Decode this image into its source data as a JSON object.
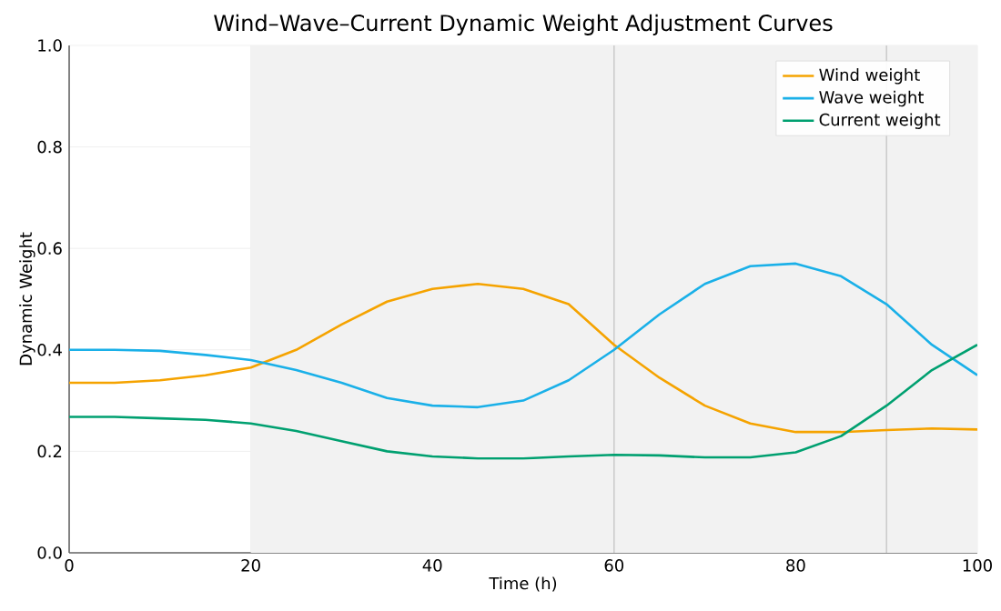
{
  "chart_data": {
    "type": "line",
    "title": "Wind–Wave–Current Dynamic Weight Adjustment Curves",
    "xlabel": "Time (h)",
    "ylabel": "Dynamic Weight",
    "x": [
      0,
      5,
      10,
      15,
      20,
      25,
      30,
      35,
      40,
      45,
      50,
      55,
      60,
      65,
      70,
      75,
      80,
      85,
      90,
      95,
      100
    ],
    "series": [
      {
        "name": "Wind weight",
        "color": "#f5a300",
        "values": [
          0.335,
          0.335,
          0.34,
          0.35,
          0.365,
          0.4,
          0.45,
          0.495,
          0.52,
          0.53,
          0.52,
          0.49,
          0.41,
          0.345,
          0.29,
          0.255,
          0.238,
          0.238,
          0.242,
          0.245,
          0.243
        ]
      },
      {
        "name": "Wave weight",
        "color": "#1ab0e8",
        "values": [
          0.4,
          0.4,
          0.398,
          0.39,
          0.38,
          0.36,
          0.335,
          0.305,
          0.29,
          0.287,
          0.3,
          0.34,
          0.4,
          0.47,
          0.53,
          0.565,
          0.57,
          0.545,
          0.49,
          0.41,
          0.35
        ]
      },
      {
        "name": "Current weight",
        "color": "#00a070",
        "values": [
          0.268,
          0.268,
          0.265,
          0.262,
          0.255,
          0.24,
          0.22,
          0.2,
          0.19,
          0.186,
          0.186,
          0.19,
          0.193,
          0.192,
          0.188,
          0.188,
          0.198,
          0.23,
          0.29,
          0.36,
          0.41
        ]
      }
    ],
    "xlim": [
      0,
      100
    ],
    "ylim": [
      0,
      1.0
    ],
    "xticks": [
      0,
      20,
      40,
      60,
      80,
      100
    ],
    "yticks": [
      {
        "value": 0,
        "label": "0.0"
      },
      {
        "value": 0.2,
        "label": "0.2"
      },
      {
        "value": 0.4,
        "label": "0.4"
      },
      {
        "value": 0.6,
        "label": "0.6"
      },
      {
        "value": 0.8,
        "label": "0.8"
      },
      {
        "value": 1.0,
        "label": "1.0"
      }
    ],
    "bands": [
      {
        "axis": "x",
        "from": 20,
        "to": 100,
        "color": "#f2f2f2"
      }
    ],
    "ref_lines": [
      {
        "axis": "x",
        "value": 60,
        "color": "#cccccc"
      },
      {
        "axis": "x",
        "value": 90,
        "color": "#cccccc"
      }
    ],
    "grid": true,
    "legend": "top right",
    "marker": "none",
    "line_style": "solid"
  }
}
